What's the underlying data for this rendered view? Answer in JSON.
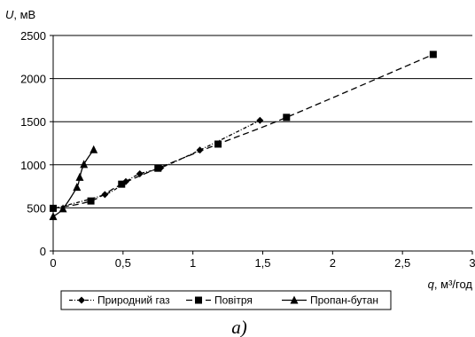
{
  "chart_data": {
    "type": "line",
    "ylabel_var": "U",
    "ylabel_unit": ", мВ",
    "xlabel_var": "q",
    "xlabel_unit": ", м³/год",
    "xlim": [
      0,
      3
    ],
    "ylim": [
      0,
      2500
    ],
    "x_ticks": [
      {
        "value": 0,
        "label": "0"
      },
      {
        "value": 0.5,
        "label": "0,5"
      },
      {
        "value": 1,
        "label": "1"
      },
      {
        "value": 1.5,
        "label": "1,5"
      },
      {
        "value": 2,
        "label": "2"
      },
      {
        "value": 2.5,
        "label": "2,5"
      },
      {
        "value": 3,
        "label": "3"
      }
    ],
    "y_ticks": [
      {
        "value": 0,
        "label": "0"
      },
      {
        "value": 500,
        "label": "500"
      },
      {
        "value": 1000,
        "label": "1000"
      },
      {
        "value": 1500,
        "label": "1500"
      },
      {
        "value": 2000,
        "label": "2000"
      },
      {
        "value": 2500,
        "label": "2500"
      }
    ],
    "grid": "horizontal",
    "legend_position": "bottom",
    "series": [
      {
        "name": "Природний газ",
        "marker": "diamond",
        "line": "dash-dot",
        "points": [
          [
            0.0,
            490
          ],
          [
            0.37,
            655
          ],
          [
            0.52,
            805
          ],
          [
            0.62,
            895
          ],
          [
            0.77,
            965
          ],
          [
            1.05,
            1170
          ],
          [
            1.48,
            1515
          ]
        ]
      },
      {
        "name": "Повітря",
        "marker": "square",
        "line": "dashed",
        "points": [
          [
            0.0,
            495
          ],
          [
            0.27,
            580
          ],
          [
            0.49,
            775
          ],
          [
            0.75,
            960
          ],
          [
            1.18,
            1240
          ],
          [
            1.67,
            1550
          ],
          [
            2.72,
            2280
          ]
        ]
      },
      {
        "name": "Пропан-бутан",
        "marker": "triangle",
        "line": "solid",
        "points": [
          [
            0.0,
            400
          ],
          [
            0.07,
            490
          ],
          [
            0.17,
            740
          ],
          [
            0.19,
            855
          ],
          [
            0.22,
            1005
          ],
          [
            0.29,
            1175
          ]
        ]
      }
    ],
    "caption": "а)"
  }
}
